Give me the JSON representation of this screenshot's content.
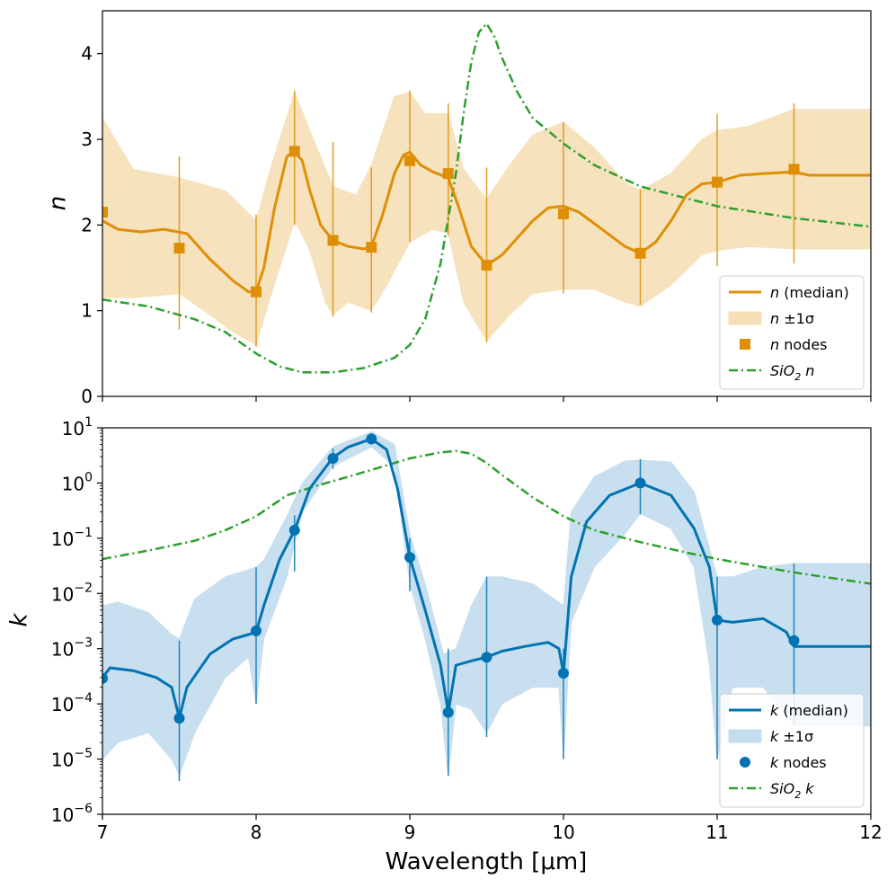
{
  "chart_data": [
    {
      "type": "line",
      "panel": "top",
      "ylabel": "n",
      "xlabel": "",
      "xlim": [
        7,
        12
      ],
      "ylim": [
        0,
        4.5
      ],
      "yscale": "linear",
      "xticks": [
        7,
        8,
        9,
        10,
        11,
        12
      ],
      "yticks": [
        0,
        1,
        2,
        3,
        4
      ],
      "ytick_labels": [
        "0",
        "1",
        "2",
        "3",
        "4"
      ],
      "colors": {
        "median": "#de8f05",
        "band": "#f6dfb6",
        "nodes": "#de8f05",
        "sio2": "#2ca02c"
      },
      "legend": {
        "position": "lower-right",
        "entries": [
          {
            "italic": "n",
            "label": " (median)"
          },
          {
            "italic": "n",
            "label": " ±1σ"
          },
          {
            "italic": "n",
            "label": " nodes"
          },
          {
            "italic": "SiO",
            "sub": "2",
            "label": " n"
          }
        ]
      },
      "series": [
        {
          "name": "n (median)",
          "x": [
            7.0,
            7.1,
            7.25,
            7.4,
            7.55,
            7.7,
            7.85,
            7.95,
            8.0,
            8.05,
            8.12,
            8.2,
            8.25,
            8.3,
            8.35,
            8.42,
            8.5,
            8.6,
            8.7,
            8.75,
            8.82,
            8.9,
            8.96,
            9.0,
            9.07,
            9.15,
            9.25,
            9.32,
            9.4,
            9.5,
            9.6,
            9.7,
            9.8,
            9.9,
            10.0,
            10.1,
            10.25,
            10.4,
            10.5,
            10.6,
            10.7,
            10.8,
            10.9,
            11.0,
            11.15,
            11.3,
            11.5,
            11.6,
            12.0
          ],
          "y": [
            2.05,
            1.95,
            1.92,
            1.95,
            1.9,
            1.6,
            1.35,
            1.22,
            1.22,
            1.5,
            2.2,
            2.8,
            2.86,
            2.75,
            2.4,
            2.0,
            1.82,
            1.75,
            1.72,
            1.75,
            2.1,
            2.6,
            2.82,
            2.85,
            2.7,
            2.62,
            2.55,
            2.2,
            1.75,
            1.53,
            1.65,
            1.85,
            2.05,
            2.2,
            2.22,
            2.15,
            1.95,
            1.75,
            1.67,
            1.8,
            2.05,
            2.35,
            2.48,
            2.5,
            2.58,
            2.6,
            2.62,
            2.58,
            2.58
          ]
        },
        {
          "name": "n +1σ",
          "x": [
            7.0,
            7.2,
            7.5,
            7.8,
            8.0,
            8.1,
            8.25,
            8.35,
            8.5,
            8.65,
            8.75,
            8.9,
            9.0,
            9.1,
            9.25,
            9.35,
            9.5,
            9.65,
            9.8,
            10.0,
            10.2,
            10.4,
            10.5,
            10.7,
            10.9,
            11.0,
            11.2,
            11.5,
            12.0
          ],
          "y": [
            3.25,
            2.65,
            2.55,
            2.4,
            2.05,
            2.7,
            3.55,
            3.1,
            2.45,
            2.35,
            2.7,
            3.5,
            3.55,
            3.3,
            3.3,
            2.65,
            2.3,
            2.7,
            3.05,
            3.2,
            2.9,
            2.5,
            2.4,
            2.6,
            3.0,
            3.1,
            3.15,
            3.35,
            3.35
          ]
        },
        {
          "name": "n −1σ",
          "x": [
            7.0,
            7.2,
            7.5,
            7.7,
            7.85,
            8.0,
            8.1,
            8.25,
            8.35,
            8.45,
            8.5,
            8.6,
            8.75,
            8.85,
            9.0,
            9.15,
            9.25,
            9.35,
            9.5,
            9.65,
            9.8,
            10.0,
            10.2,
            10.4,
            10.5,
            10.7,
            10.9,
            11.0,
            11.2,
            11.5,
            12.0
          ],
          "y": [
            1.15,
            1.15,
            1.2,
            0.95,
            0.75,
            0.6,
            1.2,
            2.05,
            1.7,
            1.1,
            0.95,
            1.1,
            1.0,
            1.3,
            1.8,
            1.95,
            1.9,
            1.1,
            0.65,
            0.95,
            1.2,
            1.25,
            1.25,
            1.1,
            1.05,
            1.3,
            1.65,
            1.7,
            1.75,
            1.72,
            1.72
          ]
        },
        {
          "name": "SiO2 n",
          "x": [
            7.0,
            7.3,
            7.6,
            7.8,
            8.0,
            8.15,
            8.3,
            8.5,
            8.7,
            8.9,
            9.0,
            9.1,
            9.2,
            9.3,
            9.35,
            9.4,
            9.45,
            9.5,
            9.55,
            9.6,
            9.7,
            9.8,
            9.9,
            10.0,
            10.2,
            10.5,
            11.0,
            11.5,
            12.0
          ],
          "y": [
            1.13,
            1.05,
            0.9,
            0.75,
            0.5,
            0.35,
            0.28,
            0.28,
            0.33,
            0.45,
            0.6,
            0.9,
            1.55,
            2.6,
            3.3,
            3.9,
            4.25,
            4.35,
            4.2,
            3.95,
            3.55,
            3.25,
            3.1,
            2.95,
            2.7,
            2.45,
            2.22,
            2.08,
            1.98
          ]
        }
      ],
      "nodes": {
        "x": [
          7.0,
          7.5,
          8.0,
          8.25,
          8.5,
          8.75,
          9.0,
          9.25,
          9.5,
          10.0,
          10.5,
          11.0,
          11.5
        ],
        "y": [
          2.15,
          1.73,
          1.22,
          2.86,
          1.82,
          1.74,
          2.75,
          2.6,
          1.53,
          2.13,
          1.67,
          2.5,
          2.65
        ],
        "err_lo": [
          null,
          0.78,
          0.58,
          2.0,
          0.93,
          0.98,
          1.8,
          1.88,
          0.63,
          1.2,
          1.07,
          1.52,
          1.55
        ],
        "err_hi": [
          null,
          2.8,
          2.12,
          3.57,
          2.97,
          2.67,
          3.57,
          3.42,
          2.67,
          3.2,
          2.42,
          3.3,
          3.42
        ]
      }
    },
    {
      "type": "line",
      "panel": "bottom",
      "ylabel": "k",
      "xlabel": "Wavelength [μm]",
      "xlim": [
        7,
        12
      ],
      "ylim": [
        1e-06,
        10
      ],
      "yscale": "log",
      "xticks": [
        7,
        8,
        9,
        10,
        11,
        12
      ],
      "xtick_labels": [
        "7",
        "8",
        "9",
        "10",
        "11",
        "12"
      ],
      "yticks_exp": [
        -6,
        -5,
        -4,
        -3,
        -2,
        -1,
        0,
        1
      ],
      "colors": {
        "median": "#0173b2",
        "band": "#c3dcee",
        "nodes": "#0173b2",
        "sio2": "#2ca02c"
      },
      "legend": {
        "position": "lower-right",
        "entries": [
          {
            "italic": "k",
            "label": " (median)"
          },
          {
            "italic": "k",
            "label": " ±1σ"
          },
          {
            "italic": "k",
            "label": " nodes"
          },
          {
            "italic": "SiO",
            "sub": "2",
            "label": " k"
          }
        ]
      },
      "series": [
        {
          "name": "k (median)",
          "x": [
            7.0,
            7.05,
            7.2,
            7.35,
            7.45,
            7.5,
            7.55,
            7.7,
            7.85,
            7.95,
            8.0,
            8.05,
            8.15,
            8.25,
            8.35,
            8.5,
            8.6,
            8.75,
            8.85,
            8.92,
            9.0,
            9.1,
            9.2,
            9.25,
            9.3,
            9.4,
            9.5,
            9.6,
            9.75,
            9.9,
            9.97,
            10.0,
            10.05,
            10.15,
            10.3,
            10.5,
            10.7,
            10.85,
            10.95,
            11.0,
            11.1,
            11.3,
            11.45,
            11.5,
            12.0
          ],
          "y": [
            0.0003,
            0.00045,
            0.0004,
            0.0003,
            0.0002,
            5.5e-05,
            0.0002,
            0.0008,
            0.0015,
            0.0018,
            0.002,
            0.006,
            0.04,
            0.14,
            0.8,
            2.9,
            4.5,
            6.3,
            4.0,
            0.8,
            0.045,
            0.005,
            0.0005,
            7e-05,
            0.0005,
            0.0006,
            0.0007,
            0.0009,
            0.0011,
            0.0013,
            0.001,
            0.00036,
            0.02,
            0.2,
            0.6,
            1.0,
            0.6,
            0.15,
            0.03,
            0.0033,
            0.003,
            0.0035,
            0.002,
            0.0011,
            0.0011
          ]
        },
        {
          "name": "k +1σ",
          "x": [
            7.0,
            7.1,
            7.3,
            7.45,
            7.5,
            7.6,
            7.8,
            8.0,
            8.05,
            8.2,
            8.3,
            8.5,
            8.75,
            8.9,
            9.0,
            9.1,
            9.22,
            9.3,
            9.4,
            9.5,
            9.6,
            9.8,
            10.0,
            10.05,
            10.2,
            10.4,
            10.5,
            10.7,
            10.85,
            11.0,
            11.1,
            11.3,
            11.5,
            12.0
          ],
          "y": [
            0.006,
            0.007,
            0.0045,
            0.0018,
            0.0015,
            0.008,
            0.02,
            0.03,
            0.04,
            0.25,
            1.0,
            4.5,
            8.5,
            5.0,
            0.12,
            0.015,
            0.0008,
            0.001,
            0.006,
            0.02,
            0.02,
            0.015,
            0.006,
            0.3,
            1.3,
            2.5,
            2.6,
            2.4,
            0.7,
            0.02,
            0.02,
            0.03,
            0.035,
            0.035
          ]
        },
        {
          "name": "k −1σ",
          "x": [
            7.0,
            7.1,
            7.3,
            7.45,
            7.5,
            7.6,
            7.8,
            7.95,
            8.0,
            8.05,
            8.2,
            8.3,
            8.5,
            8.75,
            8.9,
            9.0,
            9.1,
            9.2,
            9.25,
            9.3,
            9.4,
            9.5,
            9.6,
            9.8,
            9.97,
            10.0,
            10.05,
            10.2,
            10.4,
            10.5,
            10.7,
            10.85,
            10.95,
            11.0,
            11.1,
            11.3,
            11.5,
            12.0
          ],
          "y": [
            1e-05,
            2e-05,
            3e-05,
            1e-05,
            5e-06,
            3e-05,
            0.0003,
            0.0007,
            0.0001,
            0.0015,
            0.02,
            0.3,
            2.0,
            4.5,
            2.0,
            0.015,
            0.0015,
            0.0001,
            5e-06,
            0.0001,
            8e-05,
            3e-05,
            0.0001,
            0.0002,
            0.0002,
            1e-05,
            0.003,
            0.03,
            0.12,
            0.28,
            0.15,
            0.03,
            0.0005,
            1e-05,
            0.0002,
            0.0002,
            4e-05,
            4e-05
          ]
        },
        {
          "name": "SiO2 k",
          "x": [
            7.0,
            7.3,
            7.6,
            7.8,
            8.0,
            8.2,
            8.4,
            8.6,
            8.8,
            9.0,
            9.2,
            9.3,
            9.4,
            9.5,
            9.6,
            9.8,
            10.0,
            10.2,
            10.5,
            10.8,
            11.0,
            11.5,
            12.0
          ],
          "y": [
            0.042,
            0.06,
            0.09,
            0.14,
            0.25,
            0.6,
            0.9,
            1.3,
            1.9,
            2.8,
            3.6,
            3.8,
            3.4,
            2.3,
            1.4,
            0.55,
            0.25,
            0.14,
            0.085,
            0.055,
            0.042,
            0.024,
            0.015
          ]
        }
      ],
      "nodes": {
        "x": [
          7.0,
          7.5,
          8.0,
          8.25,
          8.5,
          8.75,
          9.0,
          9.25,
          9.5,
          10.0,
          10.5,
          11.0,
          11.5
        ],
        "y": [
          0.00029,
          5.5e-05,
          0.0021,
          0.14,
          2.8,
          6.3,
          0.045,
          7e-05,
          0.0007,
          0.00036,
          1.0,
          0.0033,
          0.0014
        ],
        "err_lo": [
          null,
          4e-06,
          0.0001,
          0.025,
          1.8,
          5.0,
          0.011,
          5e-06,
          2.5e-05,
          1e-05,
          0.27,
          1e-05,
          4e-05
        ],
        "err_hi": [
          null,
          0.0014,
          0.03,
          0.26,
          4.2,
          8.0,
          0.1,
          0.001,
          0.02,
          0.001,
          2.7,
          0.02,
          0.035
        ]
      }
    }
  ]
}
